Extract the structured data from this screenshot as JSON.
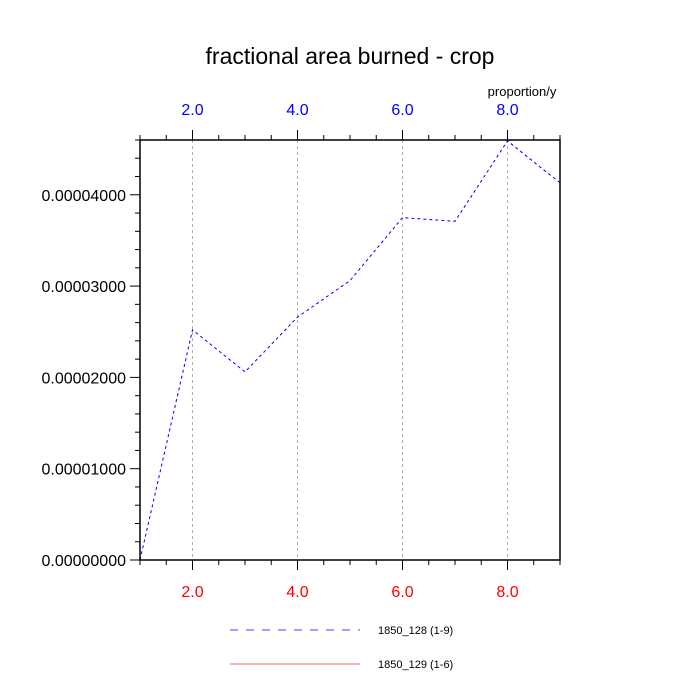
{
  "chart_data": {
    "type": "line",
    "title": "fractional area burned - crop",
    "units_label": "proportion/y",
    "ylabel": "",
    "xlim": [
      1,
      9
    ],
    "ylim": [
      0,
      4.6e-05
    ],
    "x_ticks_top": [
      "2.0",
      "4.0",
      "6.0",
      "8.0"
    ],
    "x_ticks_bottom": [
      "2.0",
      "4.0",
      "6.0",
      "8.0"
    ],
    "x_tick_values": [
      2,
      4,
      6,
      8
    ],
    "y_ticks": [
      "0.00000000",
      "0.00001000",
      "0.00002000",
      "0.00003000",
      "0.00004000"
    ],
    "y_tick_values": [
      0,
      1e-05,
      2e-05,
      3e-05,
      4e-05
    ],
    "grid": "vertical dashed at major x ticks",
    "top_axis_color": "#0000ff",
    "bottom_axis_color": "#ff0000",
    "series": [
      {
        "name": "1850_128 (1-9)",
        "color": "#0000ff",
        "dash": "dashed",
        "x": [
          1,
          2,
          3,
          4,
          5,
          6,
          7,
          8,
          9
        ],
        "values": [
          0.0,
          2.52e-05,
          2.06e-05,
          2.66e-05,
          3.06e-05,
          3.75e-05,
          3.71e-05,
          4.59e-05,
          4.13e-05
        ]
      },
      {
        "name": "1850_129 (1-6)",
        "color": "#ff0000",
        "dash": "solid",
        "x": [],
        "values": []
      }
    ],
    "legend": "bottom-center"
  }
}
